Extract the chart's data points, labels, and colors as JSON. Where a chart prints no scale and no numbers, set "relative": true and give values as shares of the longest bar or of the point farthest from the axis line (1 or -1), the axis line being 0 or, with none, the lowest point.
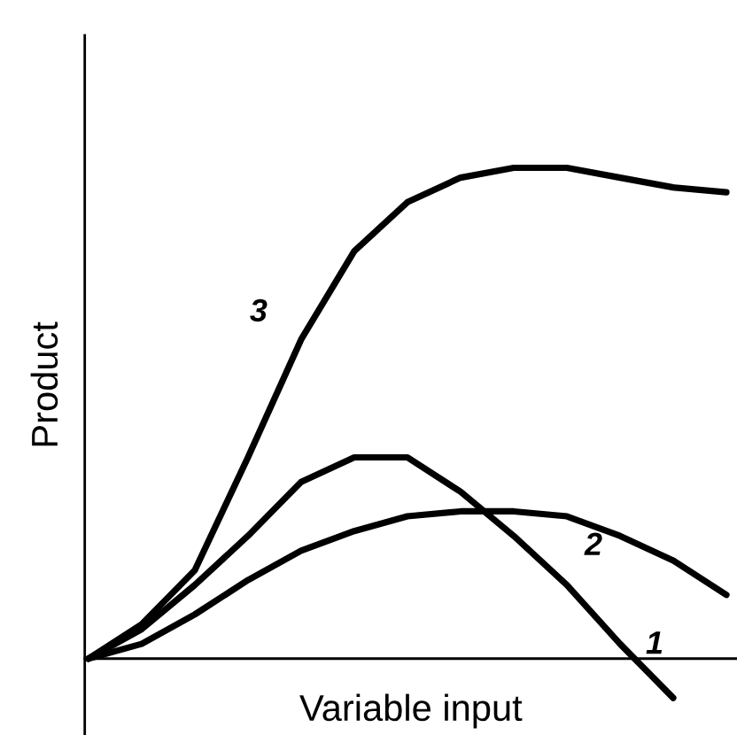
{
  "chart_data": {
    "type": "line",
    "relative": true,
    "xlabel": "Variable input",
    "ylabel": "Product",
    "categories": [
      null,
      null,
      null,
      null,
      null,
      null,
      null,
      null,
      null,
      null,
      null,
      null,
      null
    ],
    "series": [
      {
        "name": "1",
        "color": "#000000",
        "values": [
          0,
          0.06,
          0.15,
          0.25,
          0.36,
          0.41,
          0.41,
          0.34,
          0.25,
          0.15,
          0.03,
          -0.08,
          null
        ]
      },
      {
        "name": "2",
        "color": "#000000",
        "values": [
          0,
          0.03,
          0.09,
          0.16,
          0.22,
          0.26,
          0.29,
          0.3,
          0.3,
          0.29,
          0.25,
          0.2,
          0.13
        ]
      },
      {
        "name": "3",
        "color": "#000000",
        "values": [
          0,
          0.07,
          0.18,
          0.41,
          0.65,
          0.83,
          0.93,
          0.98,
          1.0,
          1.0,
          0.98,
          0.96,
          0.95
        ]
      }
    ],
    "marker": "none",
    "line_style": "solid"
  }
}
